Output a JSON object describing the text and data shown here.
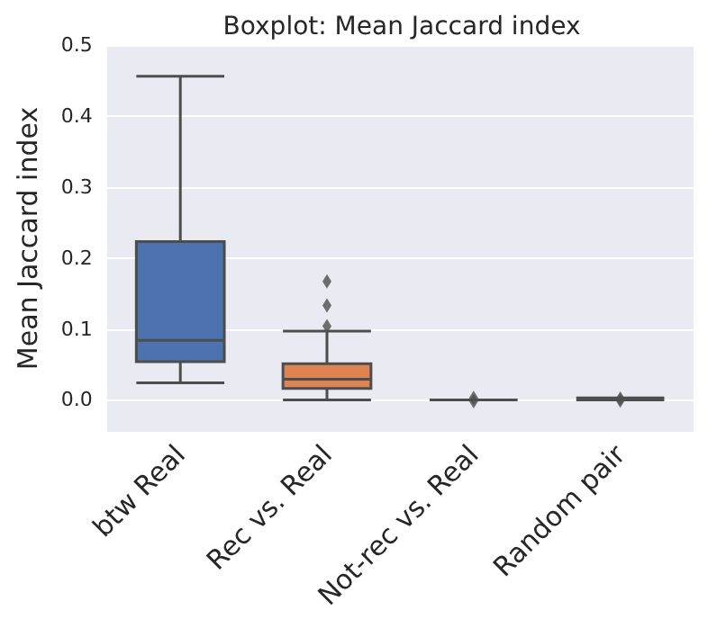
{
  "chart_data": {
    "type": "box",
    "title": "Boxplot: Mean Jaccard index",
    "ylabel": "Mean Jaccard index",
    "categories": [
      "btw Real",
      "Rec vs. Real",
      "Not-rec vs. Real",
      "Random pair"
    ],
    "colors": [
      "#4c72b0",
      "#dd8452",
      "#4d4d4d",
      "#4d4d4d"
    ],
    "boxes": [
      {
        "low": 0.024,
        "q1": 0.054,
        "median": 0.084,
        "q3": 0.223,
        "high": 0.456
      },
      {
        "low": 0.0,
        "q1": 0.016,
        "median": 0.029,
        "q3": 0.051,
        "high": 0.097,
        "outliers": [
          0.104,
          0.133,
          0.167
        ]
      },
      {
        "low": 0.0,
        "q1": 0.0,
        "median": 0.0,
        "q3": 0.0,
        "high": 0.0,
        "outliers": [
          0.003,
          -0.002
        ]
      },
      {
        "low": 0.0,
        "q1": 0.0,
        "median": 0.0,
        "q3": 0.0,
        "high": 0.003,
        "outliers": [
          0.002,
          -0.001
        ]
      }
    ],
    "ylim": [
      -0.045,
      0.5
    ],
    "yticks": [
      {
        "value": 0,
        "label": "0.0"
      },
      {
        "value": 0.1,
        "label": "0.1"
      },
      {
        "value": 0.2,
        "label": "0.2"
      },
      {
        "value": 0.3,
        "label": "0.3"
      },
      {
        "value": 0.4,
        "label": "0.4"
      },
      {
        "value": 0.5,
        "label": "0.5"
      }
    ],
    "grid": "y"
  }
}
